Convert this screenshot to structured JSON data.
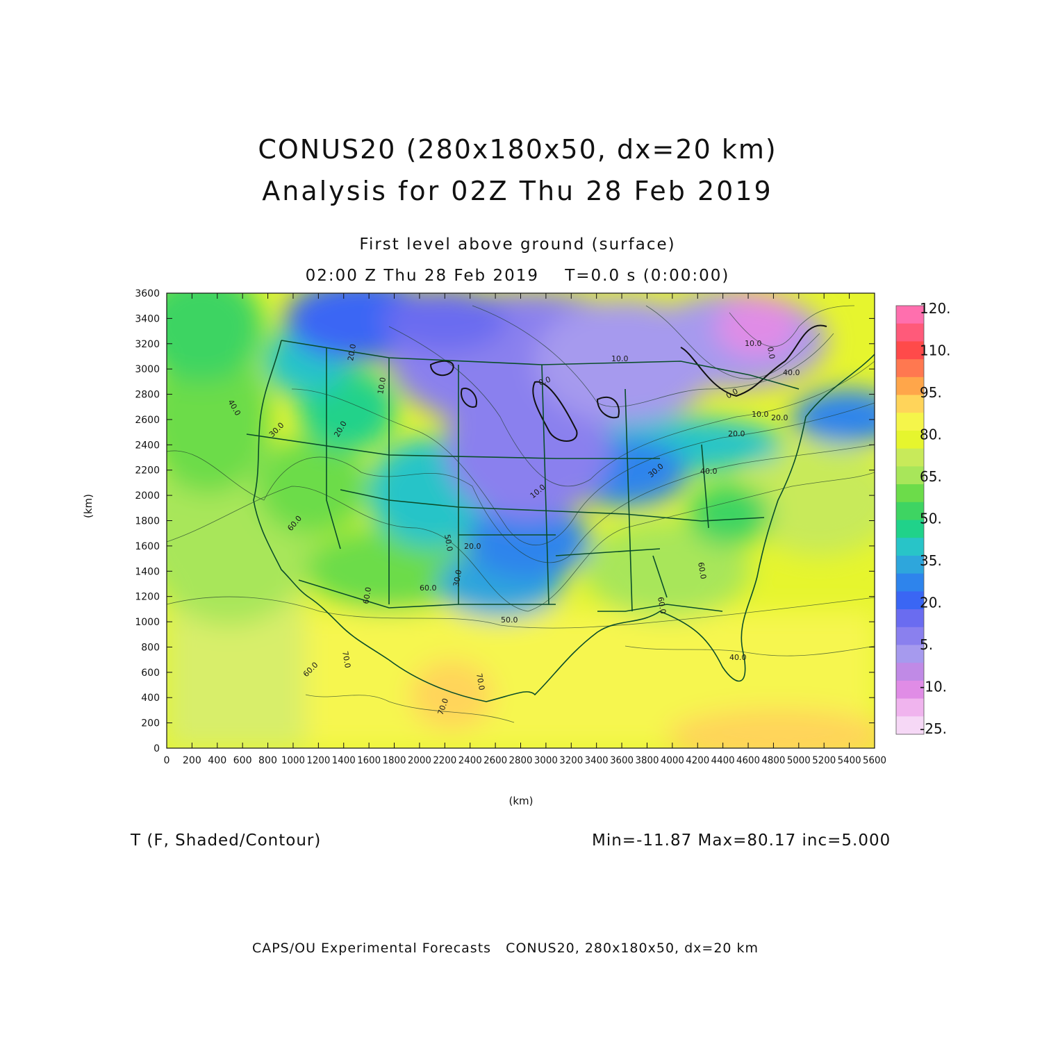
{
  "titles": {
    "line1": "CONUS20 (280x180x50, dx=20 km)",
    "line2": "Analysis for 02Z Thu 28 Feb 2019",
    "level": "First level above ground (surface)",
    "time": "02:00 Z Thu 28 Feb 2019    T=0.0 s (0:00:00)"
  },
  "axes": {
    "x_label": "(km)",
    "y_label": "(km)",
    "x_ticks": [
      "0",
      "200",
      "400",
      "600",
      "800",
      "1000",
      "1200",
      "1400",
      "1600",
      "1800",
      "2000",
      "2200",
      "2400",
      "2600",
      "2800",
      "3000",
      "3200",
      "3400",
      "3600",
      "3800",
      "4000",
      "4200",
      "4400",
      "4600",
      "4800",
      "5000",
      "5200",
      "5400",
      "5600"
    ],
    "y_ticks": [
      "0",
      "200",
      "400",
      "600",
      "800",
      "1000",
      "1200",
      "1400",
      "1600",
      "1800",
      "2000",
      "2200",
      "2400",
      "2600",
      "2800",
      "3000",
      "3200",
      "3400",
      "3600"
    ],
    "x_range_km": [
      0,
      5600
    ],
    "y_range_km": [
      0,
      3600
    ]
  },
  "field": {
    "label": "T (F, Shaded/Contour)",
    "stats": "Min=-11.87 Max=80.17 inc=5.000",
    "min": -11.87,
    "max": 80.17,
    "increment": 5.0
  },
  "colorbar": {
    "labels": [
      "120.",
      "110.",
      "95.",
      "80.",
      "65.",
      "50.",
      "35.",
      "20.",
      "5.",
      "-10.",
      "-25."
    ],
    "colors": [
      "#ff6fae",
      "#ff5a7a",
      "#ff4a4a",
      "#ff7850",
      "#ffa64a",
      "#ffd45a",
      "#f5f54a",
      "#e6f52e",
      "#c8ea5a",
      "#a8e65a",
      "#6cdc4a",
      "#3ed462",
      "#20d28a",
      "#28c4c8",
      "#2ea6dc",
      "#2e84ec",
      "#3a66f4",
      "#6a6cf0",
      "#8a80ee",
      "#a69aee",
      "#c08ae6",
      "#e08ce6",
      "#f0b4ee",
      "#f6d8f6"
    ]
  },
  "contour_labels": [
    "20.0",
    "10.0",
    "30.0",
    "20.0",
    "10.0",
    "0.0",
    "0.0",
    "40.0",
    "30.0",
    "20.0",
    "10.0",
    "0.0",
    "60.0",
    "60.0",
    "70.0",
    "70.0",
    "50.0",
    "60.0",
    "60.0",
    "60.0",
    "50.0",
    "30.0",
    "40.0",
    "20.0",
    "10.0",
    "60.0",
    "70.0",
    "40.0",
    "40.0",
    "20.0",
    "10.0"
  ],
  "footer": "CAPS/OU Experimental Forecasts   CONUS20, 280x180x50, dx=20 km"
}
